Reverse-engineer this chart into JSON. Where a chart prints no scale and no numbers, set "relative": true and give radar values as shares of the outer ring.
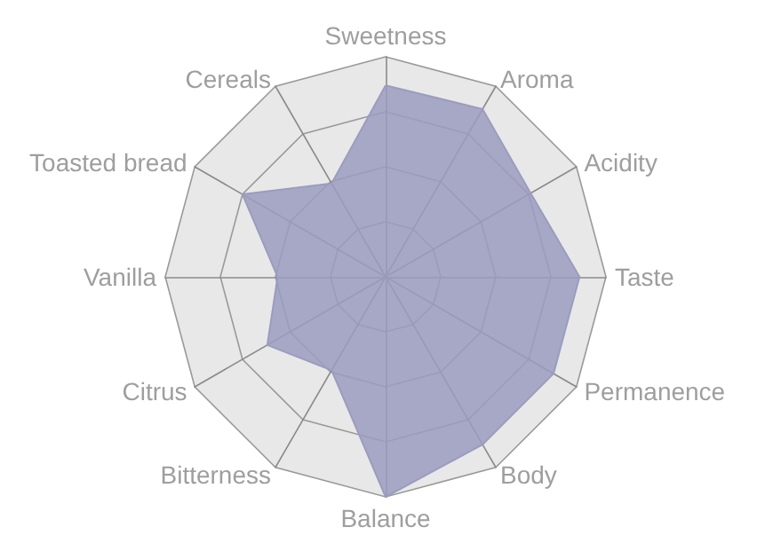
{
  "chart_data": {
    "type": "radar",
    "relative": true,
    "categories": [
      "Sweetness",
      "Aroma",
      "Acidity",
      "Taste",
      "Permanence",
      "Body",
      "Balance",
      "Bitterness",
      "Citrus",
      "Vanilla",
      "Toasted bread",
      "Cereals"
    ],
    "series": [
      {
        "color": "#9b9cbf",
        "values": [
          0.87,
          0.88,
          0.76,
          0.88,
          0.88,
          0.88,
          1.0,
          0.49,
          0.62,
          0.49,
          0.75,
          0.49
        ]
      }
    ]
  }
}
